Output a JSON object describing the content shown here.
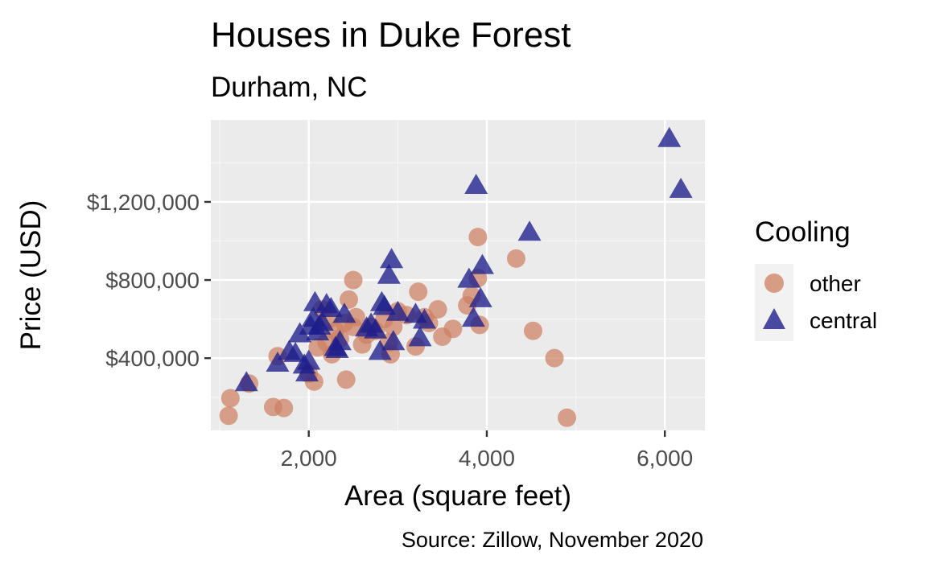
{
  "chart_data": {
    "type": "scatter",
    "title": "Houses in Duke Forest",
    "subtitle": "Durham, NC",
    "xlabel": "Area (square feet)",
    "ylabel": "Price (USD)",
    "caption": "Source: Zillow, November 2020",
    "xlim": [
      900,
      6450
    ],
    "ylim": [
      30000,
      1620000
    ],
    "x_ticks": [
      2000,
      4000,
      6000
    ],
    "x_tick_labels": [
      "2,000",
      "4,000",
      "6,000"
    ],
    "y_ticks": [
      400000,
      800000,
      1200000
    ],
    "y_tick_labels": [
      "$400,000",
      "$800,000",
      "$1,200,000"
    ],
    "grid": true,
    "legend": {
      "title": "Cooling",
      "placement": "right",
      "entries": [
        {
          "label": "other",
          "shape": "circle",
          "color": "#cd7f62"
        },
        {
          "label": "central",
          "shape": "triangle",
          "color": "#1e1e8c"
        }
      ]
    },
    "series": [
      {
        "name": "other",
        "shape": "circle",
        "color": "#cd7f62",
        "points": [
          [
            1100,
            105000
          ],
          [
            1120,
            195000
          ],
          [
            1330,
            270000
          ],
          [
            1600,
            150000
          ],
          [
            1650,
            410000
          ],
          [
            1720,
            145000
          ],
          [
            2000,
            320000
          ],
          [
            2060,
            280000
          ],
          [
            2100,
            455000
          ],
          [
            2150,
            650000
          ],
          [
            2200,
            480000
          ],
          [
            2230,
            600000
          ],
          [
            2260,
            420000
          ],
          [
            2300,
            540000
          ],
          [
            2350,
            500000
          ],
          [
            2400,
            580000
          ],
          [
            2420,
            290000
          ],
          [
            2450,
            700000
          ],
          [
            2500,
            800000
          ],
          [
            2500,
            560000
          ],
          [
            2530,
            610000
          ],
          [
            2600,
            470000
          ],
          [
            2650,
            520000
          ],
          [
            2700,
            560000
          ],
          [
            2750,
            540000
          ],
          [
            2850,
            600000
          ],
          [
            2900,
            480000
          ],
          [
            2920,
            420000
          ],
          [
            2950,
            560000
          ],
          [
            3000,
            640000
          ],
          [
            3100,
            620000
          ],
          [
            3200,
            460000
          ],
          [
            3230,
            740000
          ],
          [
            3300,
            610000
          ],
          [
            3350,
            580000
          ],
          [
            3450,
            650000
          ],
          [
            3500,
            510000
          ],
          [
            3620,
            550000
          ],
          [
            3780,
            670000
          ],
          [
            3830,
            720000
          ],
          [
            3900,
            810000
          ],
          [
            3900,
            1020000
          ],
          [
            3920,
            570000
          ],
          [
            4330,
            910000
          ],
          [
            4520,
            540000
          ],
          [
            4760,
            400000
          ],
          [
            4900,
            95000
          ]
        ]
      },
      {
        "name": "central",
        "shape": "triangle",
        "color": "#1e1e8c",
        "points": [
          [
            1300,
            270000
          ],
          [
            1650,
            370000
          ],
          [
            1780,
            430000
          ],
          [
            1850,
            420000
          ],
          [
            1900,
            520000
          ],
          [
            1950,
            360000
          ],
          [
            1980,
            320000
          ],
          [
            2000,
            380000
          ],
          [
            2020,
            560000
          ],
          [
            2050,
            600000
          ],
          [
            2070,
            680000
          ],
          [
            2100,
            530000
          ],
          [
            2120,
            560000
          ],
          [
            2150,
            580000
          ],
          [
            2200,
            670000
          ],
          [
            2250,
            650000
          ],
          [
            2300,
            450000
          ],
          [
            2320,
            440000
          ],
          [
            2350,
            480000
          ],
          [
            2400,
            620000
          ],
          [
            2650,
            550000
          ],
          [
            2700,
            570000
          ],
          [
            2750,
            540000
          ],
          [
            2800,
            430000
          ],
          [
            2820,
            680000
          ],
          [
            2850,
            660000
          ],
          [
            2900,
            820000
          ],
          [
            2930,
            900000
          ],
          [
            2950,
            480000
          ],
          [
            3000,
            630000
          ],
          [
            3200,
            620000
          ],
          [
            3250,
            500000
          ],
          [
            3300,
            590000
          ],
          [
            3800,
            800000
          ],
          [
            3850,
            600000
          ],
          [
            3880,
            1280000
          ],
          [
            3930,
            700000
          ],
          [
            3950,
            870000
          ],
          [
            4480,
            1040000
          ],
          [
            6050,
            1520000
          ],
          [
            6180,
            1260000
          ]
        ]
      }
    ]
  }
}
